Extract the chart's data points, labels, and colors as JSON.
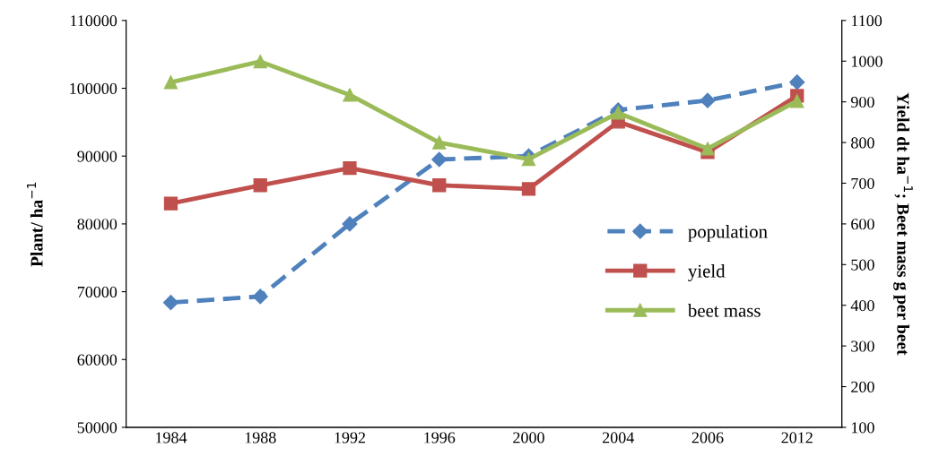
{
  "chart_data": {
    "type": "line",
    "categories": [
      "1984",
      "1988",
      "1992",
      "1996",
      "2000",
      "2004",
      "2006",
      "2012"
    ],
    "ylabel": "Plant/ ha$^{−1}$",
    "y2label": "Yield dt ha$^{−1}$; Beet mass g per beet",
    "ylim": [
      50000,
      110000
    ],
    "yticks": [
      50000,
      60000,
      70000,
      80000,
      90000,
      100000,
      110000
    ],
    "y2lim": [
      100,
      1100
    ],
    "y2ticks": [
      100,
      200,
      300,
      400,
      500,
      600,
      700,
      800,
      900,
      1000,
      1100
    ],
    "series": [
      {
        "name": "population",
        "color": "#4f81bd",
        "marker": "diamond",
        "line_style": "dashed",
        "values": [
          68400,
          69300,
          80000,
          89500,
          90000,
          96800,
          98200,
          100900
        ]
      },
      {
        "name": "yield",
        "color": "#c0504d",
        "marker": "square",
        "line_style": "solid",
        "axis": "y2",
        "values": [
          650,
          695,
          737,
          695,
          686,
          851,
          776,
          915
        ]
      },
      {
        "name": "beet mass",
        "color": "#9bbb59",
        "marker": "triangle",
        "line_style": "solid",
        "axis": "y2",
        "values": [
          948,
          999,
          917,
          800,
          759,
          873,
          785,
          902
        ]
      }
    ],
    "legend": "right",
    "grid": false
  }
}
